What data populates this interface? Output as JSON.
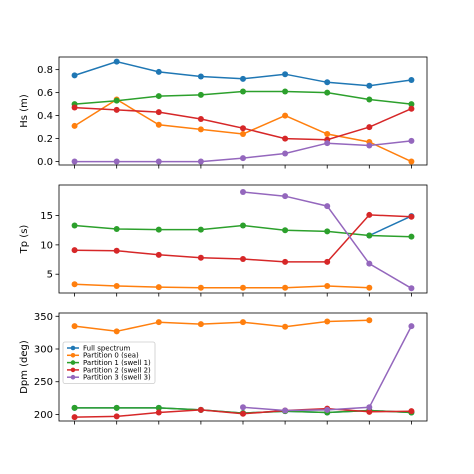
{
  "chart_data": {
    "type": "line",
    "x": [
      0,
      1,
      2,
      3,
      4,
      5,
      6,
      7,
      8
    ],
    "series_meta": [
      {
        "name": "Full spectrum",
        "color": "#1f77b4"
      },
      {
        "name": "Partition 0 (sea)",
        "color": "#ff7f0e"
      },
      {
        "name": "Partition 1 (swell 1)",
        "color": "#2ca02c"
      },
      {
        "name": "Partition 2 (swell 2)",
        "color": "#d62728"
      },
      {
        "name": "Partition 3 (swell 3)",
        "color": "#9467bd"
      }
    ],
    "legend_location": "upper-left of bottom panel",
    "panels": [
      {
        "ylabel": "Hs (m)",
        "ylim": [
          -0.03,
          0.91
        ],
        "yticks": [
          0.0,
          0.2,
          0.4,
          0.6,
          0.8
        ],
        "ytick_labels": [
          "0.0",
          "0.2",
          "0.4",
          "0.6",
          "0.8"
        ],
        "series": [
          {
            "name": "Full spectrum",
            "values": [
              0.75,
              0.87,
              0.78,
              0.74,
              0.72,
              0.76,
              0.69,
              0.66,
              0.71
            ]
          },
          {
            "name": "Partition 0 (sea)",
            "values": [
              0.31,
              0.54,
              0.32,
              0.28,
              0.24,
              0.4,
              0.24,
              0.17,
              0.0
            ]
          },
          {
            "name": "Partition 1 (swell 1)",
            "values": [
              0.5,
              0.53,
              0.57,
              0.58,
              0.61,
              0.61,
              0.6,
              0.54,
              0.5
            ]
          },
          {
            "name": "Partition 2 (swell 2)",
            "values": [
              0.47,
              0.45,
              0.43,
              0.37,
              0.29,
              0.2,
              0.19,
              0.3,
              0.46
            ]
          },
          {
            "name": "Partition 3 (swell 3)",
            "values": [
              0.0,
              0.0,
              0.0,
              0.0,
              0.03,
              0.07,
              0.16,
              0.14,
              0.18
            ]
          }
        ]
      },
      {
        "ylabel": "Tp (s)",
        "ylim": [
          1.8,
          20.2
        ],
        "yticks": [
          5,
          10,
          15
        ],
        "ytick_labels": [
          "5",
          "10",
          "15"
        ],
        "series": [
          {
            "name": "Full spectrum",
            "values": [
              null,
              null,
              null,
              null,
              null,
              null,
              null,
              11.6,
              14.9
            ]
          },
          {
            "name": "Partition 0 (sea)",
            "values": [
              3.3,
              3.0,
              2.8,
              2.7,
              2.7,
              2.7,
              3.0,
              2.7,
              null
            ]
          },
          {
            "name": "Partition 1 (swell 1)",
            "values": [
              13.3,
              12.7,
              12.6,
              12.6,
              13.3,
              12.5,
              12.3,
              11.6,
              11.4
            ]
          },
          {
            "name": "Partition 2 (swell 2)",
            "values": [
              9.1,
              9.0,
              8.3,
              7.8,
              7.6,
              7.1,
              7.1,
              15.1,
              14.8
            ]
          },
          {
            "name": "Partition 3 (swell 3)",
            "values": [
              null,
              null,
              null,
              null,
              19.0,
              18.3,
              16.6,
              6.8,
              2.6
            ]
          }
        ]
      },
      {
        "ylabel": "Dpm (deg)",
        "ylim": [
          190,
          355
        ],
        "yticks": [
          200,
          250,
          300,
          350
        ],
        "ytick_labels": [
          "200",
          "250",
          "300",
          "350"
        ],
        "series": [
          {
            "name": "Full spectrum",
            "values": [
              210,
              210,
              210,
              207,
              202,
              205,
              203,
              206,
              203
            ]
          },
          {
            "name": "Partition 0 (sea)",
            "values": [
              335,
              327,
              341,
              338,
              341,
              334,
              342,
              344,
              null
            ]
          },
          {
            "name": "Partition 1 (swell 1)",
            "values": [
              210,
              210,
              210,
              207,
              202,
              205,
              203,
              206,
              203
            ]
          },
          {
            "name": "Partition 2 (swell 2)",
            "values": [
              196,
              197,
              203,
              207,
              201,
              206,
              209,
              204,
              205
            ]
          },
          {
            "name": "Partition 3 (swell 3)",
            "values": [
              null,
              null,
              null,
              null,
              211,
              206,
              207,
              211,
              335
            ]
          }
        ]
      }
    ]
  }
}
